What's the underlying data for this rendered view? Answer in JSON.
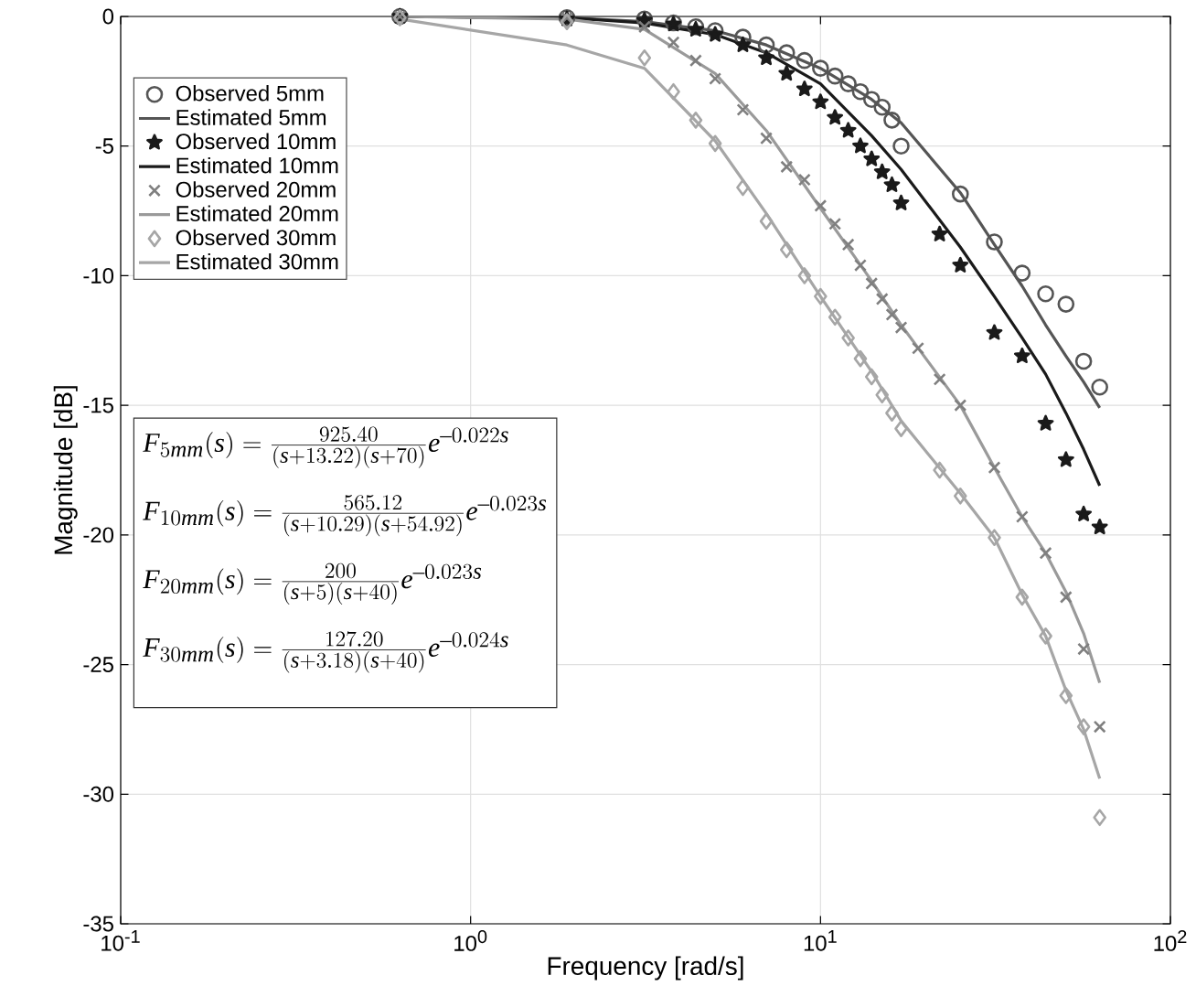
{
  "chart_data": {
    "type": "scatter",
    "xlabel": "Frequency [rad/s]",
    "ylabel": "Magnitude [dB]",
    "log": "x",
    "grid": true,
    "legend": "top left",
    "xlim": [
      0.1,
      100
    ],
    "ylim": [
      -35,
      0
    ],
    "xticks": [
      {
        "value": 0.1,
        "label": "10$^{-1}$"
      },
      {
        "value": 1,
        "label": "10$^{0}$"
      },
      {
        "value": 10,
        "label": "10$^{1}$"
      },
      {
        "value": 100,
        "label": "10$^{2}$"
      }
    ],
    "yticks": [
      -35,
      -30,
      -25,
      -20,
      -15,
      -10,
      -5,
      0
    ],
    "annotations": [
      "F_{5mm}(s) = \\frac{925.40}{(s+13.22)(s+70)}e^{-0.022s}",
      "F_{10mm}(s) = \\frac{565.12}{(s+10.29)(s+54.92)}e^{-0.023s}",
      "F_{20mm}(s) = \\frac{200}{(s+5)(s+40)}e^{-0.023s}",
      "F_{30mm}(s) = \\frac{127.20}{(s+3.18)(s+40)}e^{-0.024s}"
    ],
    "series": [
      {
        "name": "Observed 5mm",
        "type": "scatter",
        "marker": "circle",
        "color": "#555555",
        "x": [
          0.628,
          1.885,
          3.14,
          3.8,
          4.4,
          5,
          6,
          7,
          8,
          9,
          10,
          11,
          12,
          13,
          14,
          15,
          16,
          17,
          25.1,
          31.4,
          37.7,
          44,
          50.3,
          56.5,
          62.8
        ],
        "values": [
          0,
          -0.05,
          -0.1,
          -0.25,
          -0.4,
          -0.55,
          -0.8,
          -1.1,
          -1.4,
          -1.7,
          -2.0,
          -2.3,
          -2.6,
          -2.9,
          -3.2,
          -3.5,
          -4.0,
          -5.0,
          -6.85,
          -8.7,
          -9.9,
          -10.7,
          -11.1,
          -13.3,
          -14.3
        ]
      },
      {
        "name": "Estimated 5mm",
        "type": "line",
        "marker": "none",
        "color": "#555555",
        "x": [
          0.628,
          1.885,
          3.14,
          5,
          7,
          10,
          14,
          17,
          25.1,
          31.4,
          37.7,
          44,
          50.3,
          56.5,
          62.8
        ],
        "values": [
          0,
          -0.05,
          -0.2,
          -0.55,
          -1.1,
          -2.0,
          -3.2,
          -4.1,
          -6.8,
          -8.8,
          -10.4,
          -11.9,
          -13.1,
          -14.1,
          -15.1
        ]
      },
      {
        "name": "Observed 10mm",
        "type": "scatter",
        "marker": "star",
        "color": "#1a1a1a",
        "x": [
          0.628,
          1.885,
          3.14,
          3.8,
          4.4,
          5,
          6,
          7,
          8,
          9,
          10,
          11,
          12,
          13,
          14,
          15,
          16,
          17,
          21.9,
          25.1,
          31.4,
          37.7,
          44,
          50.3,
          56.5,
          62.8
        ],
        "values": [
          0,
          -0.1,
          -0.15,
          -0.3,
          -0.5,
          -0.7,
          -1.1,
          -1.6,
          -2.2,
          -2.8,
          -3.3,
          -3.9,
          -4.4,
          -5.0,
          -5.5,
          -6.0,
          -6.5,
          -7.2,
          -8.4,
          -9.6,
          -12.2,
          -13.1,
          -15.7,
          -17.1,
          -19.2,
          -19.7
        ]
      },
      {
        "name": "Estimated 10mm",
        "type": "line",
        "marker": "none",
        "color": "#1a1a1a",
        "x": [
          0.628,
          1.885,
          3.14,
          5,
          7,
          10,
          14,
          17,
          25.1,
          31.4,
          37.7,
          44,
          50.3,
          56.5,
          62.8
        ],
        "values": [
          0,
          -0.05,
          -0.25,
          -0.7,
          -1.4,
          -2.6,
          -4.6,
          -5.9,
          -8.9,
          -10.8,
          -12.4,
          -13.8,
          -15.3,
          -16.7,
          -18.1
        ]
      },
      {
        "name": "Observed 20mm",
        "type": "scatter",
        "marker": "cross",
        "color": "#7f7f7f",
        "x": [
          0.628,
          1.885,
          3.14,
          3.8,
          4.4,
          5,
          6,
          7,
          8,
          9,
          10,
          11,
          12,
          13,
          14,
          15,
          16,
          17,
          19,
          21.9,
          25.1,
          31.4,
          37.7,
          44,
          50.3,
          56.5,
          62.8
        ],
        "values": [
          0,
          -0.05,
          -0.4,
          -1.0,
          -1.7,
          -2.4,
          -3.6,
          -4.7,
          -5.8,
          -6.3,
          -7.3,
          -8.0,
          -8.8,
          -9.6,
          -10.3,
          -10.9,
          -11.5,
          -12.0,
          -12.8,
          -14.0,
          -15.0,
          -17.4,
          -19.3,
          -20.7,
          -22.4,
          -24.4,
          -27.4
        ]
      },
      {
        "name": "Estimated 20mm",
        "type": "line",
        "marker": "none",
        "color": "#9a9a9a",
        "x": [
          0.628,
          1.885,
          3.14,
          5,
          7,
          10,
          14,
          17,
          25.1,
          31.4,
          37.7,
          44,
          50.3,
          56.5,
          62.8
        ],
        "values": [
          0,
          -0.1,
          -0.5,
          -2.2,
          -4.4,
          -7.4,
          -10.2,
          -11.9,
          -15.0,
          -17.4,
          -19.3,
          -20.7,
          -22.2,
          -23.8,
          -25.7
        ]
      },
      {
        "name": "Observed 30mm",
        "type": "scatter",
        "marker": "diamond",
        "color": "#a6a6a6",
        "x": [
          0.628,
          1.885,
          3.14,
          3.8,
          4.4,
          5,
          6,
          7,
          8,
          9,
          10,
          11,
          12,
          13,
          14,
          15,
          16,
          17,
          21.9,
          25.1,
          31.4,
          37.7,
          44,
          50.3,
          56.5,
          62.8
        ],
        "values": [
          -0.05,
          -0.2,
          -1.6,
          -2.9,
          -4.0,
          -4.9,
          -6.6,
          -7.9,
          -9.0,
          -10.0,
          -10.8,
          -11.6,
          -12.4,
          -13.2,
          -13.9,
          -14.6,
          -15.3,
          -15.9,
          -17.5,
          -18.5,
          -20.1,
          -22.4,
          -23.9,
          -26.2,
          -27.4,
          -30.9
        ]
      },
      {
        "name": "Estimated 30mm",
        "type": "line",
        "marker": "none",
        "color": "#a6a6a6",
        "x": [
          0.628,
          1.885,
          3.14,
          5,
          7,
          10,
          14,
          17,
          25.1,
          31.4,
          37.7,
          44,
          50.3,
          56.5,
          62.8
        ],
        "values": [
          -0.1,
          -1.1,
          -2.0,
          -4.8,
          -7.6,
          -10.8,
          -13.7,
          -15.6,
          -18.4,
          -20.1,
          -22.3,
          -23.9,
          -26.0,
          -27.5,
          -29.4
        ]
      }
    ]
  }
}
